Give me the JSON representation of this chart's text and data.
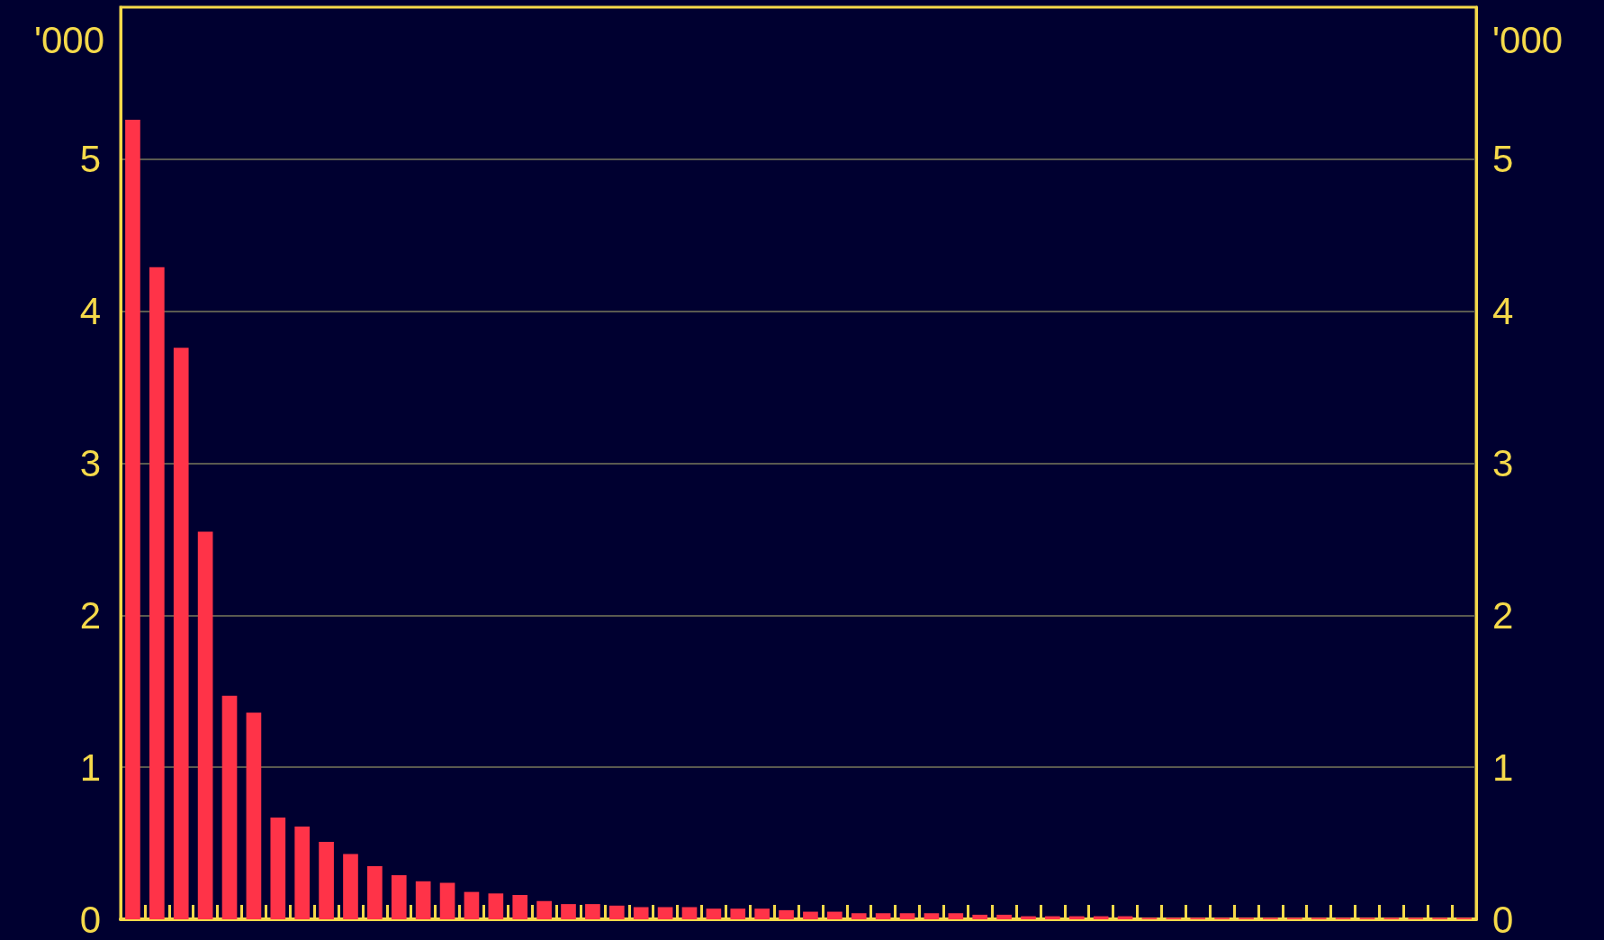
{
  "chart_data": {
    "type": "bar",
    "ylabel": "'000",
    "y2label": "'000",
    "categories": [
      null,
      null,
      null,
      null,
      null,
      null,
      null,
      null,
      null,
      null,
      null,
      null,
      null,
      null,
      null,
      null,
      null,
      null,
      null,
      null,
      null,
      null,
      null,
      null,
      null,
      null,
      null,
      null,
      null,
      null,
      null,
      null,
      null,
      null,
      null,
      null,
      null,
      null,
      null,
      null,
      null,
      null,
      null,
      null,
      null,
      null,
      null,
      null,
      null,
      null,
      null,
      null,
      null,
      null,
      null,
      null
    ],
    "values": [
      5.26,
      4.29,
      3.76,
      2.55,
      1.47,
      1.36,
      0.67,
      0.61,
      0.51,
      0.43,
      0.35,
      0.29,
      0.25,
      0.24,
      0.18,
      0.17,
      0.16,
      0.12,
      0.1,
      0.1,
      0.09,
      0.08,
      0.08,
      0.08,
      0.07,
      0.07,
      0.07,
      0.06,
      0.05,
      0.05,
      0.04,
      0.04,
      0.04,
      0.04,
      0.04,
      0.03,
      0.03,
      0.02,
      0.02,
      0.02,
      0.02,
      0.02,
      0.01,
      0.01,
      0.01,
      0.01,
      0.01,
      0.01,
      0.01,
      0.01,
      0.01,
      0.01,
      0.01,
      0.01,
      0.01,
      0.01
    ],
    "color": "#ff3348",
    "ylim": [
      0,
      6
    ],
    "yticks": [
      0,
      1,
      2,
      3,
      4,
      5
    ],
    "y2lim": [
      0,
      6
    ],
    "y2ticks": [
      0,
      1,
      2,
      3,
      4,
      5
    ],
    "grid": "y"
  }
}
